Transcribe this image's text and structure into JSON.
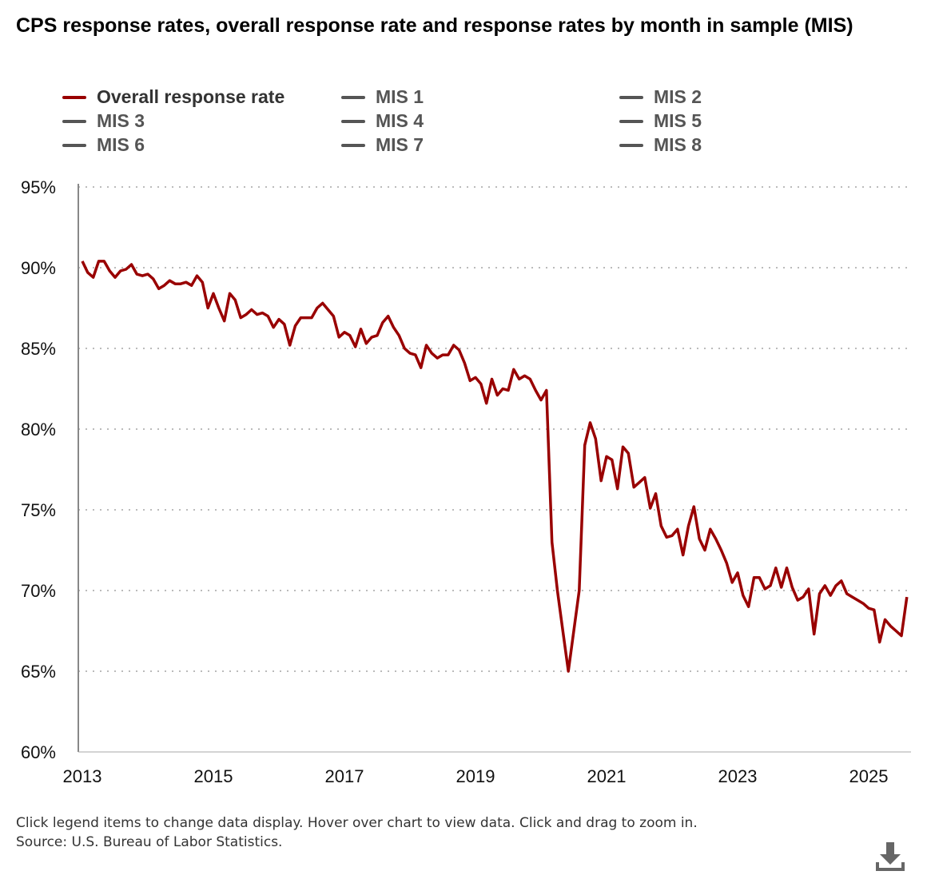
{
  "chart_data": {
    "type": "line",
    "title": "CPS response rates, overall response rate and response rates by month in sample (MIS)",
    "xlabel": "",
    "ylabel": "",
    "ylim": [
      60,
      95
    ],
    "yticks": [
      "60%",
      "65%",
      "70%",
      "75%",
      "80%",
      "85%",
      "90%",
      "95%"
    ],
    "ytick_values": [
      60,
      65,
      70,
      75,
      80,
      85,
      90,
      95
    ],
    "xticks": [
      "2013",
      "2015",
      "2017",
      "2019",
      "2021",
      "2023",
      "2025"
    ],
    "start": "2013-01",
    "frequency": "monthly",
    "grid": "horizontal dotted",
    "legend_placement": "top",
    "legend": [
      {
        "name": "Overall response rate",
        "color": "#990000",
        "visible": true
      },
      {
        "name": "MIS 1",
        "color": "#555555",
        "visible": false
      },
      {
        "name": "MIS 2",
        "color": "#555555",
        "visible": false
      },
      {
        "name": "MIS 3",
        "color": "#555555",
        "visible": false
      },
      {
        "name": "MIS 4",
        "color": "#555555",
        "visible": false
      },
      {
        "name": "MIS 5",
        "color": "#555555",
        "visible": false
      },
      {
        "name": "MIS 6",
        "color": "#555555",
        "visible": false
      },
      {
        "name": "MIS 7",
        "color": "#555555",
        "visible": false
      },
      {
        "name": "MIS 8",
        "color": "#555555",
        "visible": false
      }
    ],
    "series": [
      {
        "name": "Overall response rate",
        "color": "#990000",
        "values": [
          90.4,
          89.7,
          89.4,
          90.4,
          90.4,
          89.8,
          89.4,
          89.8,
          89.9,
          90.2,
          89.6,
          89.5,
          89.6,
          89.3,
          88.7,
          88.9,
          89.2,
          89.0,
          89.0,
          89.1,
          88.9,
          89.5,
          89.1,
          87.5,
          88.4,
          87.5,
          86.7,
          88.4,
          88.0,
          86.9,
          87.1,
          87.4,
          87.1,
          87.2,
          87.0,
          86.3,
          86.8,
          86.5,
          85.2,
          86.4,
          86.9,
          86.9,
          86.9,
          87.5,
          87.8,
          87.4,
          87.0,
          85.7,
          86.0,
          85.8,
          85.1,
          86.2,
          85.3,
          85.7,
          85.8,
          86.6,
          87.0,
          86.3,
          85.8,
          85.0,
          84.7,
          84.6,
          83.8,
          85.2,
          84.7,
          84.4,
          84.6,
          84.6,
          85.2,
          84.9,
          84.1,
          83.0,
          83.2,
          82.8,
          81.6,
          83.1,
          82.1,
          82.5,
          82.4,
          83.7,
          83.1,
          83.3,
          83.1,
          82.4,
          81.8,
          82.4,
          73.0,
          70.0,
          67.5,
          65.0,
          67.5,
          70.0,
          79.0,
          80.4,
          79.4,
          76.8,
          78.3,
          78.1,
          76.3,
          78.9,
          78.5,
          76.4,
          76.7,
          77.0,
          75.1,
          76.0,
          74.0,
          73.3,
          73.4,
          73.8,
          72.2,
          74.0,
          75.2,
          73.2,
          72.5,
          73.8,
          73.2,
          72.5,
          71.7,
          70.5,
          71.1,
          69.7,
          69.0,
          70.8,
          70.8,
          70.1,
          70.3,
          71.4,
          70.2,
          71.4,
          70.2,
          69.4,
          69.6,
          70.1,
          67.3,
          69.8,
          70.3,
          69.7,
          70.3,
          70.6,
          69.8,
          69.6,
          69.4,
          69.2,
          68.9,
          68.8,
          66.8,
          68.2,
          67.8,
          67.5,
          67.2,
          69.6
        ]
      }
    ]
  },
  "footer": {
    "instructions": "Click legend items to change data display. Hover over chart to view data. Click and drag to zoom in.",
    "source": "Source: U.S. Bureau of Labor Statistics."
  },
  "icons": {
    "download": "download-icon"
  }
}
